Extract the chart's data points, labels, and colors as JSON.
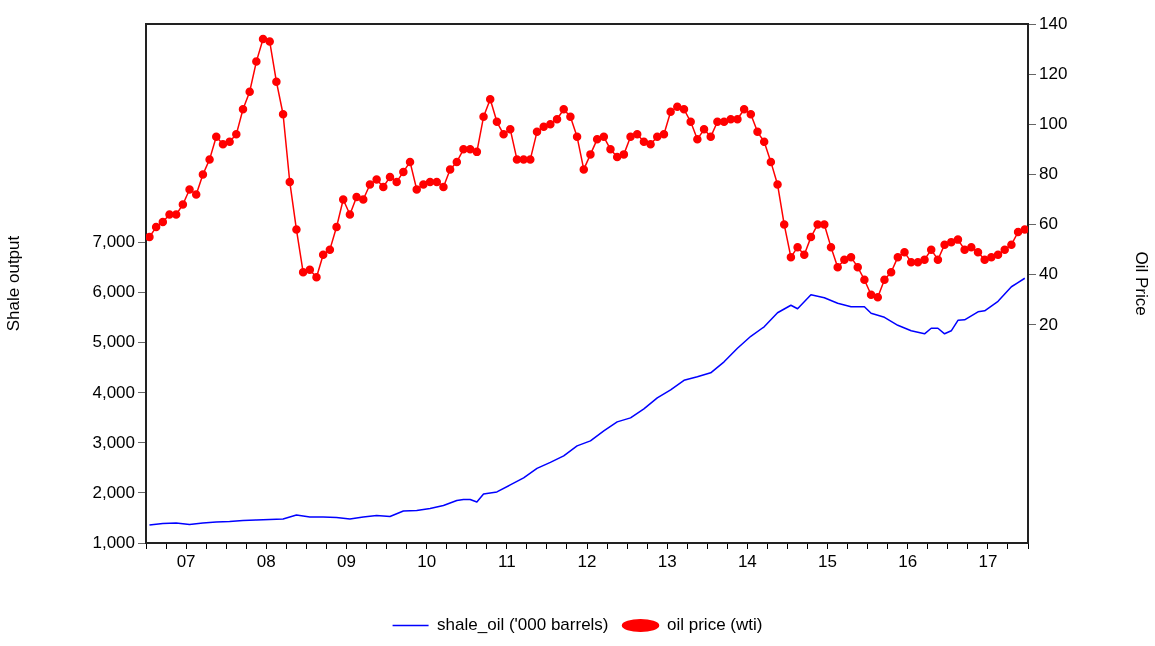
{
  "chart_data": {
    "type": "line",
    "ylabel": "Shale output",
    "y2label": "Oil Price",
    "legend": "bottom",
    "grid": false,
    "x": [
      "2007-01",
      "2007-02",
      "2007-03",
      "2007-04",
      "2007-05",
      "2007-06",
      "2007-07",
      "2007-08",
      "2007-09",
      "2007-10",
      "2007-11",
      "2007-12",
      "2008-01",
      "2008-02",
      "2008-03",
      "2008-04",
      "2008-05",
      "2008-06",
      "2008-07",
      "2008-08",
      "2008-09",
      "2008-10",
      "2008-11",
      "2008-12",
      "2009-01",
      "2009-02",
      "2009-03",
      "2009-04",
      "2009-05",
      "2009-06",
      "2009-07",
      "2009-08",
      "2009-09",
      "2009-10",
      "2009-11",
      "2009-12",
      "2010-01",
      "2010-02",
      "2010-03",
      "2010-04",
      "2010-05",
      "2010-06",
      "2010-07",
      "2010-08",
      "2010-09",
      "2010-10",
      "2010-11",
      "2010-12",
      "2011-01",
      "2011-02",
      "2011-03",
      "2011-04",
      "2011-05",
      "2011-06",
      "2011-07",
      "2011-08",
      "2011-09",
      "2011-10",
      "2011-11",
      "2011-12",
      "2012-01",
      "2012-02",
      "2012-03",
      "2012-04",
      "2012-05",
      "2012-06",
      "2012-07",
      "2012-08",
      "2012-09",
      "2012-10",
      "2012-11",
      "2012-12",
      "2013-01",
      "2013-02",
      "2013-03",
      "2013-04",
      "2013-05",
      "2013-06",
      "2013-07",
      "2013-08",
      "2013-09",
      "2013-10",
      "2013-11",
      "2013-12",
      "2014-01",
      "2014-02",
      "2014-03",
      "2014-04",
      "2014-05",
      "2014-06",
      "2014-07",
      "2014-08",
      "2014-09",
      "2014-10",
      "2014-11",
      "2014-12",
      "2015-01",
      "2015-02",
      "2015-03",
      "2015-04",
      "2015-05",
      "2015-06",
      "2015-07",
      "2015-08",
      "2015-09",
      "2015-10",
      "2015-11",
      "2015-12",
      "2016-01",
      "2016-02",
      "2016-03",
      "2016-04",
      "2016-05",
      "2016-06",
      "2016-07",
      "2016-08",
      "2016-09",
      "2016-10",
      "2016-11",
      "2016-12",
      "2017-01",
      "2017-02",
      "2017-03",
      "2017-04",
      "2017-05",
      "2017-06",
      "2017-07",
      "2017-08",
      "2017-09",
      "2017-10",
      "2017-11",
      "2017-12"
    ],
    "series": [
      {
        "name": "shale_oil ('000 barrels)",
        "color": "#0000ff",
        "marker": "none",
        "x": [
          "2007-01",
          "2007-03",
          "2007-05",
          "2007-07",
          "2007-09",
          "2007-11",
          "2008-01",
          "2008-03",
          "2008-05",
          "2008-07",
          "2008-09",
          "2008-11",
          "2009-01",
          "2009-03",
          "2009-05",
          "2009-07",
          "2009-09",
          "2009-11",
          "2010-01",
          "2010-03",
          "2010-05",
          "2010-07",
          "2010-09",
          "2010-11",
          "2010-12",
          "2011-01",
          "2011-02",
          "2011-03",
          "2011-05",
          "2011-07",
          "2011-09",
          "2011-11",
          "2012-01",
          "2012-03",
          "2012-05",
          "2012-07",
          "2012-09",
          "2012-11",
          "2013-01",
          "2013-03",
          "2013-05",
          "2013-07",
          "2013-09",
          "2013-11",
          "2014-01",
          "2014-03",
          "2014-05",
          "2014-07",
          "2014-09",
          "2014-11",
          "2015-01",
          "2015-02",
          "2015-04",
          "2015-06",
          "2015-08",
          "2015-10",
          "2015-12",
          "2016-01",
          "2016-03",
          "2016-05",
          "2016-07",
          "2016-09",
          "2016-10",
          "2016-11",
          "2016-12",
          "2017-01",
          "2017-02",
          "2017-03",
          "2017-05",
          "2017-06",
          "2017-08",
          "2017-10",
          "2017-12"
        ],
        "values": [
          1360,
          1390,
          1400,
          1370,
          1400,
          1420,
          1430,
          1450,
          1460,
          1470,
          1480,
          1560,
          1520,
          1520,
          1510,
          1480,
          1520,
          1550,
          1530,
          1640,
          1650,
          1690,
          1750,
          1850,
          1870,
          1870,
          1820,
          1980,
          2020,
          2160,
          2300,
          2490,
          2610,
          2740,
          2940,
          3040,
          3240,
          3420,
          3500,
          3680,
          3900,
          4060,
          4250,
          4320,
          4400,
          4620,
          4890,
          5130,
          5320,
          5600,
          5750,
          5680,
          5960,
          5900,
          5790,
          5720,
          5720,
          5590,
          5510,
          5350,
          5240,
          5180,
          5290,
          5290,
          5180,
          5240,
          5450,
          5460,
          5620,
          5640,
          5830,
          6120,
          6290
        ]
      },
      {
        "name": "oil price (wti)",
        "color": "#ff0000",
        "marker": "circle",
        "axis": "y2",
        "values": [
          55,
          59,
          61,
          64,
          64,
          68,
          74,
          72,
          80,
          86,
          95,
          92,
          93,
          96,
          106,
          113,
          125,
          134,
          133,
          117,
          104,
          77,
          58,
          41,
          42,
          39,
          48,
          50,
          59,
          70,
          64,
          71,
          70,
          76,
          78,
          75,
          79,
          77,
          81,
          85,
          74,
          76,
          77,
          77,
          75,
          82,
          85,
          90,
          90,
          89,
          103,
          110,
          101,
          96,
          98,
          86,
          86,
          86,
          97,
          99,
          100,
          102,
          106,
          103,
          95,
          82,
          88,
          94,
          95,
          90,
          87,
          88,
          95,
          96,
          93,
          92,
          95,
          96,
          105,
          107,
          106,
          101,
          94,
          98,
          95,
          101,
          101,
          102,
          102,
          106,
          104,
          97,
          93,
          85,
          76,
          60,
          47,
          51,
          48,
          55,
          60,
          60,
          51,
          43,
          46,
          47,
          43,
          38,
          32,
          31,
          38,
          41,
          47,
          49,
          45,
          45,
          46,
          50,
          46,
          52,
          53,
          54,
          50,
          51,
          49,
          46,
          47,
          48,
          50,
          52,
          57,
          58
        ]
      }
    ],
    "xlim": [
      "2006-12-16",
      "2017-12-16"
    ],
    "xticks": [
      {
        "value": "2006-12-16",
        "label": null
      },
      {
        "value": "2007-03-16",
        "label": null
      },
      {
        "value": "2007-06-16",
        "label": "07"
      },
      {
        "value": "2007-09-16",
        "label": null
      },
      {
        "value": "2007-12-16",
        "label": null
      },
      {
        "value": "2008-03-16",
        "label": null
      },
      {
        "value": "2008-06-16",
        "label": "08"
      },
      {
        "value": "2008-09-16",
        "label": null
      },
      {
        "value": "2008-12-16",
        "label": null
      },
      {
        "value": "2009-03-16",
        "label": null
      },
      {
        "value": "2009-06-16",
        "label": "09"
      },
      {
        "value": "2009-09-16",
        "label": null
      },
      {
        "value": "2009-12-16",
        "label": null
      },
      {
        "value": "2010-03-16",
        "label": null
      },
      {
        "value": "2010-06-16",
        "label": "10"
      },
      {
        "value": "2010-09-16",
        "label": null
      },
      {
        "value": "2010-12-16",
        "label": null
      },
      {
        "value": "2011-03-16",
        "label": null
      },
      {
        "value": "2011-06-16",
        "label": "11"
      },
      {
        "value": "2011-09-16",
        "label": null
      },
      {
        "value": "2011-12-16",
        "label": null
      },
      {
        "value": "2012-03-16",
        "label": null
      },
      {
        "value": "2012-06-16",
        "label": "12"
      },
      {
        "value": "2012-09-16",
        "label": null
      },
      {
        "value": "2012-12-16",
        "label": null
      },
      {
        "value": "2013-03-16",
        "label": null
      },
      {
        "value": "2013-06-16",
        "label": "13"
      },
      {
        "value": "2013-09-16",
        "label": null
      },
      {
        "value": "2013-12-16",
        "label": null
      },
      {
        "value": "2014-03-16",
        "label": null
      },
      {
        "value": "2014-06-16",
        "label": "14"
      },
      {
        "value": "2014-09-16",
        "label": null
      },
      {
        "value": "2014-12-16",
        "label": null
      },
      {
        "value": "2015-03-16",
        "label": null
      },
      {
        "value": "2015-06-16",
        "label": "15"
      },
      {
        "value": "2015-09-16",
        "label": null
      },
      {
        "value": "2015-12-16",
        "label": null
      },
      {
        "value": "2016-03-16",
        "label": null
      },
      {
        "value": "2016-06-16",
        "label": "16"
      },
      {
        "value": "2016-09-16",
        "label": null
      },
      {
        "value": "2016-12-16",
        "label": null
      },
      {
        "value": "2017-03-16",
        "label": null
      },
      {
        "value": "2017-06-16",
        "label": "17"
      },
      {
        "value": "2017-09-16",
        "label": null
      },
      {
        "value": "2017-12-16",
        "label": null
      }
    ],
    "ylim": [
      1000,
      11370
    ],
    "yticks": [
      {
        "value": 1000,
        "label": "1,000"
      },
      {
        "value": 2000,
        "label": "2,000"
      },
      {
        "value": 3000,
        "label": "3,000"
      },
      {
        "value": 4000,
        "label": "4,000"
      },
      {
        "value": 5000,
        "label": "5,000"
      },
      {
        "value": 6000,
        "label": "6,000"
      },
      {
        "value": 7000,
        "label": "7,000"
      }
    ],
    "y2lim": [
      -67,
      140
    ],
    "y2ticks": [
      20,
      40,
      60,
      80,
      100,
      120,
      140
    ]
  }
}
